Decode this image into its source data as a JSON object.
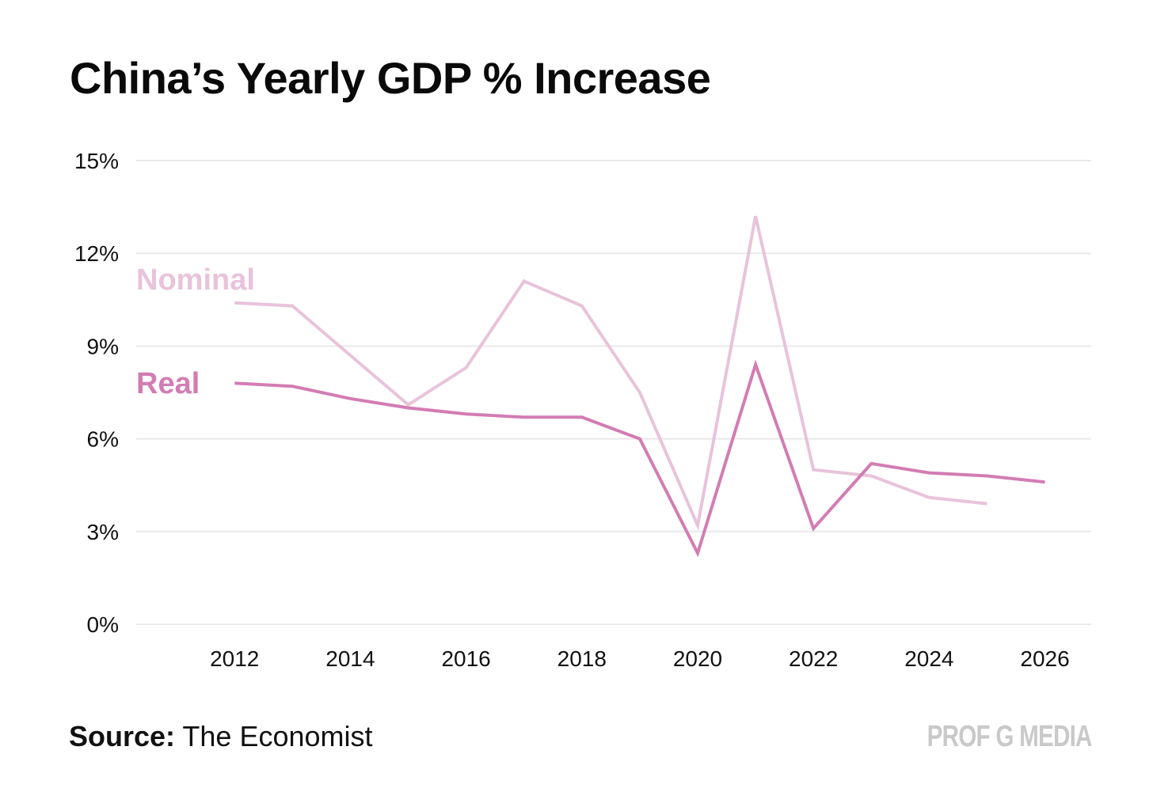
{
  "chart_data": {
    "type": "line",
    "title": "China’s Yearly GDP % Increase",
    "xlabel": "",
    "ylabel": "",
    "xlim": [
      2010.3,
      2026.8
    ],
    "ylim": [
      0,
      15
    ],
    "grid": true,
    "y_ticks": [
      0,
      3,
      6,
      9,
      12,
      15
    ],
    "y_tick_labels": [
      "0%",
      "3%",
      "6%",
      "9%",
      "12%",
      "15%"
    ],
    "x_ticks": [
      2012,
      2014,
      2016,
      2018,
      2020,
      2022,
      2024,
      2026
    ],
    "x_tick_labels": [
      "2012",
      "2014",
      "2016",
      "2018",
      "2020",
      "2022",
      "2024",
      "2026"
    ],
    "series": [
      {
        "name": "Nominal",
        "color": "#e8c3da",
        "x": [
          2012,
          2013,
          2014,
          2015,
          2016,
          2017,
          2018,
          2019,
          2020,
          2021,
          2022,
          2023,
          2024,
          2025
        ],
        "values": [
          10.4,
          10.3,
          8.7,
          7.1,
          8.3,
          11.1,
          10.3,
          7.5,
          3.2,
          13.2,
          5.0,
          4.8,
          4.1,
          3.9
        ]
      },
      {
        "name": "Real",
        "color": "#d37cb3",
        "x": [
          2012,
          2013,
          2014,
          2015,
          2016,
          2017,
          2018,
          2019,
          2020,
          2021,
          2022,
          2023,
          2024,
          2025,
          2026
        ],
        "values": [
          7.8,
          7.7,
          7.3,
          7.0,
          6.8,
          6.7,
          6.7,
          6.0,
          2.3,
          8.4,
          3.1,
          5.2,
          4.9,
          4.8,
          4.6
        ]
      }
    ],
    "source_label": "Source:",
    "source_text": "The Economist",
    "brand": "PROF G MEDIA"
  }
}
